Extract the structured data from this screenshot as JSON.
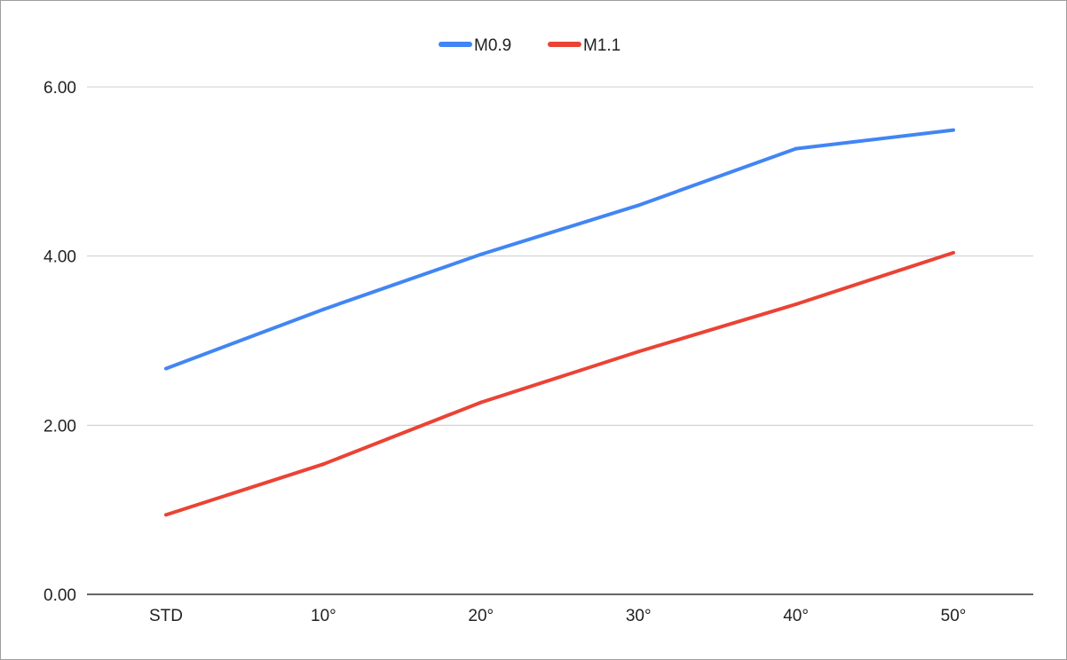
{
  "chart_data": {
    "type": "line",
    "categories": [
      "STD",
      "10°",
      "20°",
      "30°",
      "40°",
      "50°"
    ],
    "series": [
      {
        "name": "M0.9",
        "color": "#4285f4",
        "values": [
          2.67,
          3.37,
          4.02,
          4.6,
          5.27,
          5.49
        ]
      },
      {
        "name": "M1.1",
        "color": "#ea4335",
        "values": [
          0.94,
          1.54,
          2.27,
          2.87,
          3.43,
          4.04
        ]
      }
    ],
    "yticks": [
      "0.00",
      "2.00",
      "4.00",
      "6.00"
    ],
    "ylim": [
      0,
      6
    ],
    "grid": true,
    "legend_position": "top-center",
    "gridline_color": "#cccccc",
    "axis_color": "#333333"
  }
}
